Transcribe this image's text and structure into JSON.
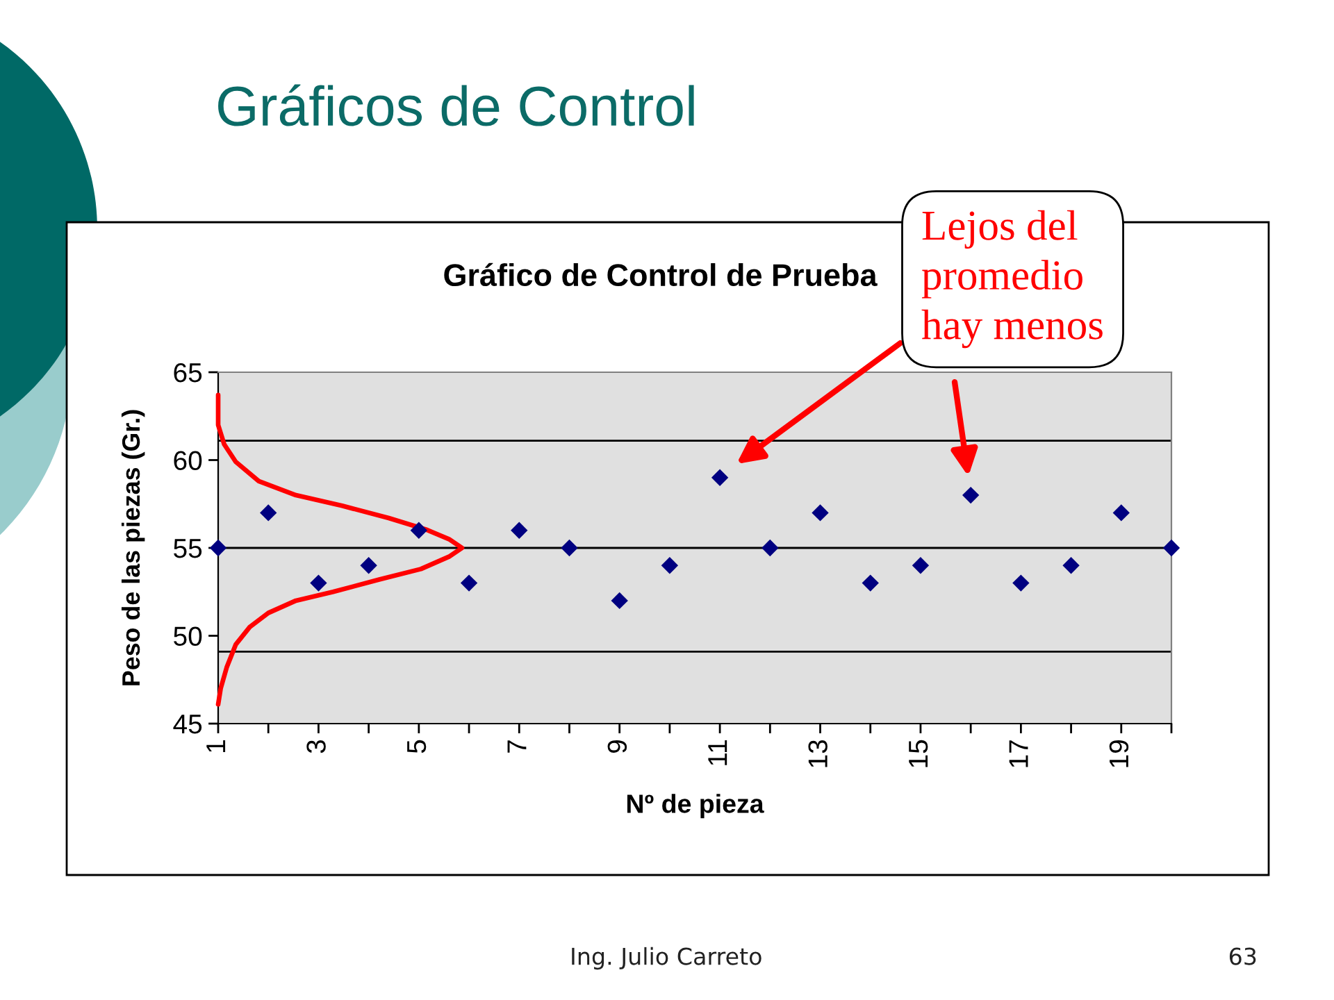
{
  "chart_data": {
    "type": "scatter",
    "title": "Gráficos de Control",
    "subtitle": "Gráfico de Control de Prueba",
    "xlabel": "Nº de pieza",
    "ylabel": "Peso de las piezas (Gr.)",
    "annotations": [
      "Lejos del\npromedio\nhay menos",
      "Ing. Julio Carreto",
      "63"
    ],
    "x": [
      1,
      2,
      3,
      4,
      5,
      6,
      7,
      8,
      9,
      10,
      11,
      12,
      13,
      14,
      15,
      16,
      17,
      18,
      19,
      20
    ],
    "series": [
      {
        "color": "#000080",
        "values": [
          55,
          57,
          53,
          54,
          56,
          53,
          56,
          55,
          52,
          54,
          59,
          55,
          57,
          53,
          54,
          58,
          53,
          54,
          57,
          55
        ]
      },
      {
        "type": "line",
        "color": "#ff0000",
        "marker": "none",
        "x": [
          1.0,
          1.0,
          1.12,
          1.35,
          1.81,
          2.55,
          3.47,
          4.4,
          5.14,
          5.6,
          5.86,
          5.6,
          5.04,
          4.21,
          3.29,
          2.55,
          2.0,
          1.63,
          1.35,
          1.17,
          1.05,
          1.0
        ],
        "values": [
          63.7,
          62.0,
          60.9,
          59.9,
          58.8,
          58.0,
          57.4,
          56.7,
          56.05,
          55.5,
          55.0,
          54.5,
          53.8,
          53.2,
          52.5,
          52.0,
          51.3,
          50.5,
          49.5,
          48.2,
          47.0,
          46.1
        ]
      }
    ],
    "xlim": [
      1,
      20
    ],
    "xticks": [
      1,
      {
        "value": 2,
        "label": null
      },
      3,
      {
        "value": 4,
        "label": null
      },
      5,
      {
        "value": 6,
        "label": null
      },
      7,
      {
        "value": 8,
        "label": null
      },
      9,
      {
        "value": 10,
        "label": null
      },
      11,
      {
        "value": 12,
        "label": null
      },
      13,
      {
        "value": 14,
        "label": null
      },
      15,
      {
        "value": 16,
        "label": null
      },
      17,
      {
        "value": 18,
        "label": null
      },
      19,
      {
        "value": 20,
        "label": null
      }
    ],
    "ylim": [
      45,
      65
    ],
    "yticks": [
      45,
      50,
      55,
      60,
      65
    ],
    "ref_lines": [
      {
        "axis": "y",
        "value": 61.1,
        "color": "#000000"
      },
      {
        "axis": "y",
        "value": 55,
        "color": "#000000"
      },
      {
        "axis": "y",
        "value": 49.1,
        "color": "#000000"
      }
    ],
    "marker": "diamond",
    "line_style": "solid"
  }
}
